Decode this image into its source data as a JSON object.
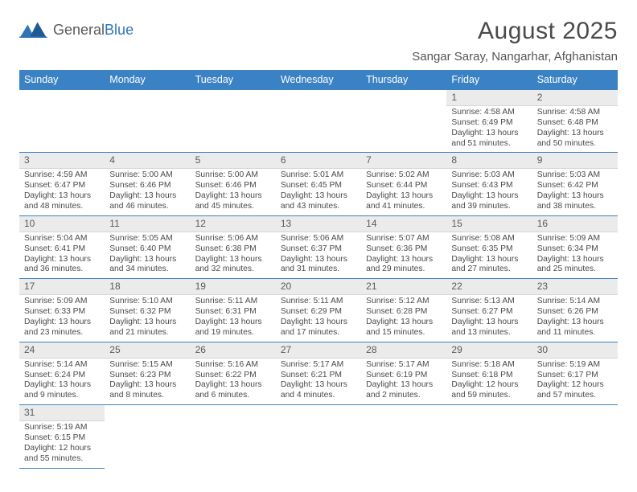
{
  "logo": {
    "general": "General",
    "blue": "Blue"
  },
  "title": "August 2025",
  "location": "Sangar Saray, Nangarhar, Afghanistan",
  "colors": {
    "header_bg": "#3b82c4",
    "header_text": "#ffffff",
    "daynum_bg": "#ebebeb",
    "row_border": "#3b82c4",
    "text": "#4a4a4a"
  },
  "weekdays": [
    "Sunday",
    "Monday",
    "Tuesday",
    "Wednesday",
    "Thursday",
    "Friday",
    "Saturday"
  ],
  "weeks": [
    [
      null,
      null,
      null,
      null,
      null,
      {
        "n": "1",
        "sr": "Sunrise: 4:58 AM",
        "ss": "Sunset: 6:49 PM",
        "dl1": "Daylight: 13 hours",
        "dl2": "and 51 minutes."
      },
      {
        "n": "2",
        "sr": "Sunrise: 4:58 AM",
        "ss": "Sunset: 6:48 PM",
        "dl1": "Daylight: 13 hours",
        "dl2": "and 50 minutes."
      }
    ],
    [
      {
        "n": "3",
        "sr": "Sunrise: 4:59 AM",
        "ss": "Sunset: 6:47 PM",
        "dl1": "Daylight: 13 hours",
        "dl2": "and 48 minutes."
      },
      {
        "n": "4",
        "sr": "Sunrise: 5:00 AM",
        "ss": "Sunset: 6:46 PM",
        "dl1": "Daylight: 13 hours",
        "dl2": "and 46 minutes."
      },
      {
        "n": "5",
        "sr": "Sunrise: 5:00 AM",
        "ss": "Sunset: 6:46 PM",
        "dl1": "Daylight: 13 hours",
        "dl2": "and 45 minutes."
      },
      {
        "n": "6",
        "sr": "Sunrise: 5:01 AM",
        "ss": "Sunset: 6:45 PM",
        "dl1": "Daylight: 13 hours",
        "dl2": "and 43 minutes."
      },
      {
        "n": "7",
        "sr": "Sunrise: 5:02 AM",
        "ss": "Sunset: 6:44 PM",
        "dl1": "Daylight: 13 hours",
        "dl2": "and 41 minutes."
      },
      {
        "n": "8",
        "sr": "Sunrise: 5:03 AM",
        "ss": "Sunset: 6:43 PM",
        "dl1": "Daylight: 13 hours",
        "dl2": "and 39 minutes."
      },
      {
        "n": "9",
        "sr": "Sunrise: 5:03 AM",
        "ss": "Sunset: 6:42 PM",
        "dl1": "Daylight: 13 hours",
        "dl2": "and 38 minutes."
      }
    ],
    [
      {
        "n": "10",
        "sr": "Sunrise: 5:04 AM",
        "ss": "Sunset: 6:41 PM",
        "dl1": "Daylight: 13 hours",
        "dl2": "and 36 minutes."
      },
      {
        "n": "11",
        "sr": "Sunrise: 5:05 AM",
        "ss": "Sunset: 6:40 PM",
        "dl1": "Daylight: 13 hours",
        "dl2": "and 34 minutes."
      },
      {
        "n": "12",
        "sr": "Sunrise: 5:06 AM",
        "ss": "Sunset: 6:38 PM",
        "dl1": "Daylight: 13 hours",
        "dl2": "and 32 minutes."
      },
      {
        "n": "13",
        "sr": "Sunrise: 5:06 AM",
        "ss": "Sunset: 6:37 PM",
        "dl1": "Daylight: 13 hours",
        "dl2": "and 31 minutes."
      },
      {
        "n": "14",
        "sr": "Sunrise: 5:07 AM",
        "ss": "Sunset: 6:36 PM",
        "dl1": "Daylight: 13 hours",
        "dl2": "and 29 minutes."
      },
      {
        "n": "15",
        "sr": "Sunrise: 5:08 AM",
        "ss": "Sunset: 6:35 PM",
        "dl1": "Daylight: 13 hours",
        "dl2": "and 27 minutes."
      },
      {
        "n": "16",
        "sr": "Sunrise: 5:09 AM",
        "ss": "Sunset: 6:34 PM",
        "dl1": "Daylight: 13 hours",
        "dl2": "and 25 minutes."
      }
    ],
    [
      {
        "n": "17",
        "sr": "Sunrise: 5:09 AM",
        "ss": "Sunset: 6:33 PM",
        "dl1": "Daylight: 13 hours",
        "dl2": "and 23 minutes."
      },
      {
        "n": "18",
        "sr": "Sunrise: 5:10 AM",
        "ss": "Sunset: 6:32 PM",
        "dl1": "Daylight: 13 hours",
        "dl2": "and 21 minutes."
      },
      {
        "n": "19",
        "sr": "Sunrise: 5:11 AM",
        "ss": "Sunset: 6:31 PM",
        "dl1": "Daylight: 13 hours",
        "dl2": "and 19 minutes."
      },
      {
        "n": "20",
        "sr": "Sunrise: 5:11 AM",
        "ss": "Sunset: 6:29 PM",
        "dl1": "Daylight: 13 hours",
        "dl2": "and 17 minutes."
      },
      {
        "n": "21",
        "sr": "Sunrise: 5:12 AM",
        "ss": "Sunset: 6:28 PM",
        "dl1": "Daylight: 13 hours",
        "dl2": "and 15 minutes."
      },
      {
        "n": "22",
        "sr": "Sunrise: 5:13 AM",
        "ss": "Sunset: 6:27 PM",
        "dl1": "Daylight: 13 hours",
        "dl2": "and 13 minutes."
      },
      {
        "n": "23",
        "sr": "Sunrise: 5:14 AM",
        "ss": "Sunset: 6:26 PM",
        "dl1": "Daylight: 13 hours",
        "dl2": "and 11 minutes."
      }
    ],
    [
      {
        "n": "24",
        "sr": "Sunrise: 5:14 AM",
        "ss": "Sunset: 6:24 PM",
        "dl1": "Daylight: 13 hours",
        "dl2": "and 9 minutes."
      },
      {
        "n": "25",
        "sr": "Sunrise: 5:15 AM",
        "ss": "Sunset: 6:23 PM",
        "dl1": "Daylight: 13 hours",
        "dl2": "and 8 minutes."
      },
      {
        "n": "26",
        "sr": "Sunrise: 5:16 AM",
        "ss": "Sunset: 6:22 PM",
        "dl1": "Daylight: 13 hours",
        "dl2": "and 6 minutes."
      },
      {
        "n": "27",
        "sr": "Sunrise: 5:17 AM",
        "ss": "Sunset: 6:21 PM",
        "dl1": "Daylight: 13 hours",
        "dl2": "and 4 minutes."
      },
      {
        "n": "28",
        "sr": "Sunrise: 5:17 AM",
        "ss": "Sunset: 6:19 PM",
        "dl1": "Daylight: 13 hours",
        "dl2": "and 2 minutes."
      },
      {
        "n": "29",
        "sr": "Sunrise: 5:18 AM",
        "ss": "Sunset: 6:18 PM",
        "dl1": "Daylight: 12 hours",
        "dl2": "and 59 minutes."
      },
      {
        "n": "30",
        "sr": "Sunrise: 5:19 AM",
        "ss": "Sunset: 6:17 PM",
        "dl1": "Daylight: 12 hours",
        "dl2": "and 57 minutes."
      }
    ],
    [
      {
        "n": "31",
        "sr": "Sunrise: 5:19 AM",
        "ss": "Sunset: 6:15 PM",
        "dl1": "Daylight: 12 hours",
        "dl2": "and 55 minutes."
      },
      null,
      null,
      null,
      null,
      null,
      null
    ]
  ]
}
